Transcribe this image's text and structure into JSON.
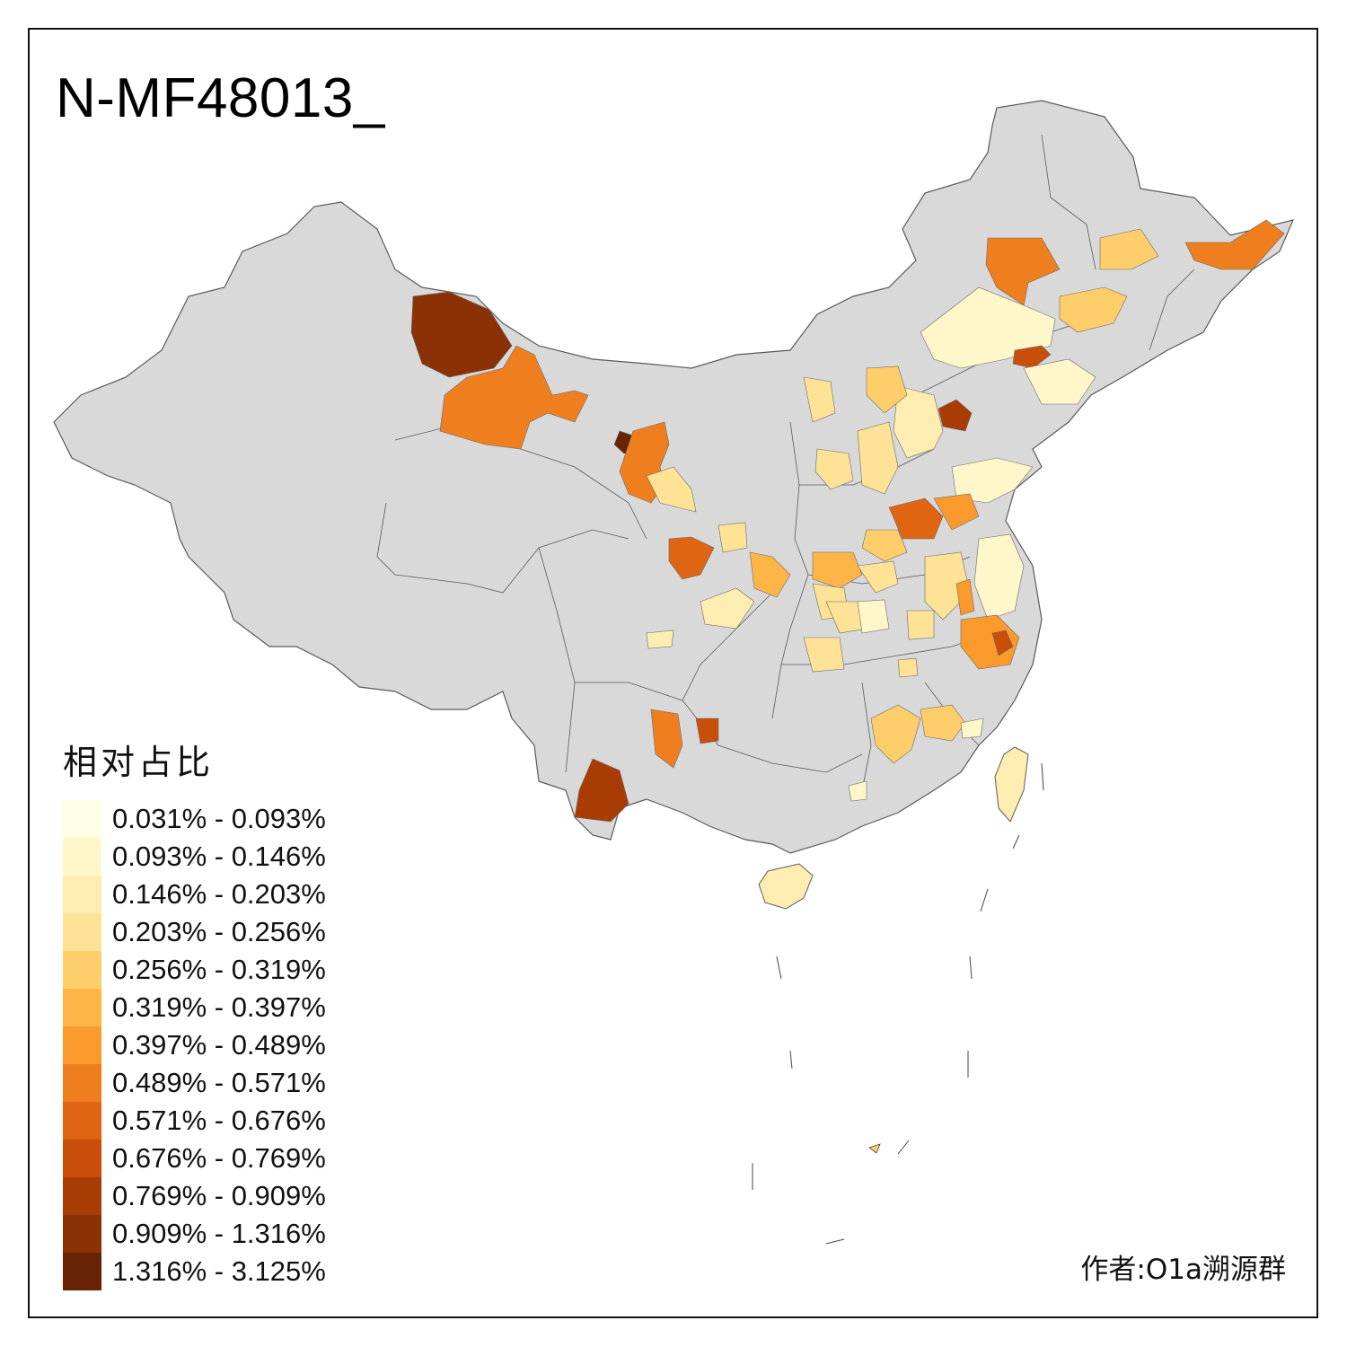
{
  "title": "N-MF48013_",
  "author": "作者:O1a溯源群",
  "legend": {
    "title": "相对占比",
    "bins": [
      {
        "label": "0.031% - 0.093%",
        "color": "#FFFFE5"
      },
      {
        "label": "0.093% - 0.146%",
        "color": "#FFF7C9"
      },
      {
        "label": "0.146% - 0.203%",
        "color": "#FEEDB0"
      },
      {
        "label": "0.203% - 0.256%",
        "color": "#FEE295"
      },
      {
        "label": "0.256% - 0.319%",
        "color": "#FECE6B"
      },
      {
        "label": "0.319% - 0.397%",
        "color": "#FEB548"
      },
      {
        "label": "0.397% - 0.489%",
        "color": "#FB9A2C"
      },
      {
        "label": "0.489% - 0.571%",
        "color": "#EF7F1E"
      },
      {
        "label": "0.571% - 0.676%",
        "color": "#E06513"
      },
      {
        "label": "0.676% - 0.769%",
        "color": "#C94E09"
      },
      {
        "label": "0.769% - 0.909%",
        "color": "#A93C04"
      },
      {
        "label": "0.909% - 1.316%",
        "color": "#8A3105"
      },
      {
        "label": "1.316% - 3.125%",
        "color": "#682506"
      }
    ]
  },
  "colors": {
    "no_data": "#D9D9D9",
    "boundary": "#5A5A5A",
    "frame": "#111111"
  }
}
